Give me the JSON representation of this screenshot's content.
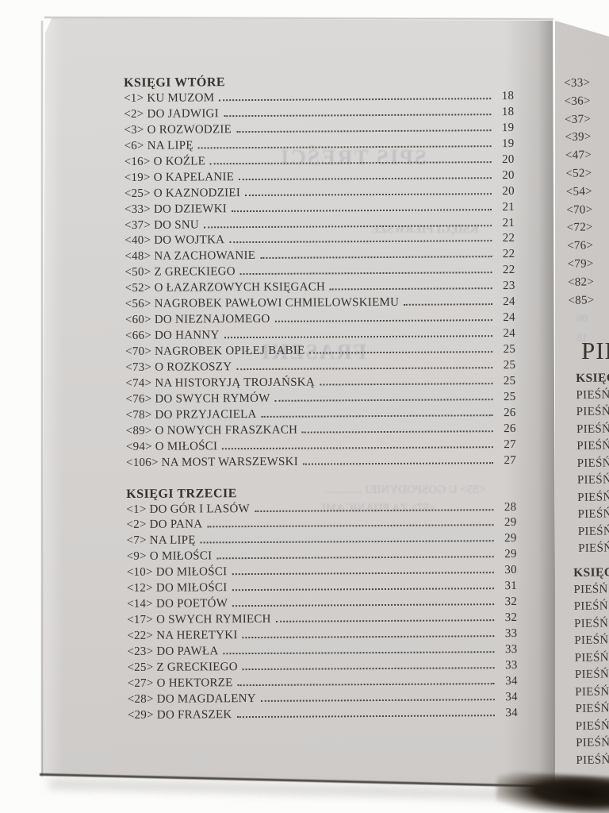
{
  "photo": {
    "background_color": "#fcfcfb",
    "left_page_color": "#d5d3d1",
    "right_page_color": "#c9c6c4",
    "ink_color": "#35312d"
  },
  "left_page": {
    "sections": [
      {
        "heading": "KSIĘGI WTÓRE",
        "entries": [
          {
            "label": "<1> KU MUZOM",
            "page": "18"
          },
          {
            "label": "<2> DO JADWIGI",
            "page": "18"
          },
          {
            "label": "<3> O ROZWODZIE",
            "page": "19"
          },
          {
            "label": "<6> NA LIPĘ",
            "page": "19"
          },
          {
            "label": "<16> O KOŹLE",
            "page": "20"
          },
          {
            "label": "<19> O KAPELANIE",
            "page": "20"
          },
          {
            "label": "<25> O KAZNODZIEI",
            "page": "20"
          },
          {
            "label": "<33> DO DZIEWKI",
            "page": "21"
          },
          {
            "label": "<37> DO SNU",
            "page": "21"
          },
          {
            "label": "<40> DO WOJTKA",
            "page": "22"
          },
          {
            "label": "<48> NA ZACHOWANIE",
            "page": "22"
          },
          {
            "label": "<50> Z GRECKIEGO",
            "page": "22"
          },
          {
            "label": "<52> O ŁAZARZOWYCH KSIĘGACH",
            "page": "23"
          },
          {
            "label": "<56> NAGROBEK PAWŁOWI CHMIELOWSKIEMU",
            "page": "24"
          },
          {
            "label": "<60> DO NIEZNAJOMEGO",
            "page": "24"
          },
          {
            "label": "<66> DO HANNY",
            "page": "24"
          },
          {
            "label": "<70> NAGROBEK OPIŁEJ BABIE",
            "page": "25"
          },
          {
            "label": "<73> O ROZKOSZY",
            "page": "25"
          },
          {
            "label": "<74> NA HISTORYJĄ TROJAŃSKĄ",
            "page": "25"
          },
          {
            "label": "<76> DO SWYCH RYMÓW",
            "page": "25"
          },
          {
            "label": "<78> DO PRZYJACIELA",
            "page": "26"
          },
          {
            "label": "<89> O NOWYCH FRASZKACH",
            "page": "26"
          },
          {
            "label": "<94> O  MIŁOŚCI",
            "page": "27"
          },
          {
            "label": "<106> NA MOST WARSZEWSKI",
            "page": "27"
          }
        ]
      },
      {
        "heading": "KSIĘGI TRZECIE",
        "entries": [
          {
            "label": "<1> DO GÓR I LASÓW",
            "page": "28"
          },
          {
            "label": "<2> DO PANA",
            "page": "29"
          },
          {
            "label": "<7> NA LIPĘ",
            "page": "29"
          },
          {
            "label": "<9> O MIŁOŚCI",
            "page": "29"
          },
          {
            "label": "<10> DO MIŁOŚCI",
            "page": "30"
          },
          {
            "label": "<12> DO MIŁOŚCI",
            "page": "31"
          },
          {
            "label": "<14> DO POETÓW",
            "page": "32"
          },
          {
            "label": "<17> O SWYCH RYMIECH",
            "page": "32"
          },
          {
            "label": "<22> NA HERETYKI",
            "page": "33"
          },
          {
            "label": "<23> DO PAWŁA",
            "page": "33"
          },
          {
            "label": "<25> Z GRECKIEGO",
            "page": "33"
          },
          {
            "label": "<27> O HEKTORZE",
            "page": "34"
          },
          {
            "label": "<28> DO MAGDALENY",
            "page": "34"
          },
          {
            "label": "<29> DO FRASZEK",
            "page": "34"
          }
        ]
      }
    ]
  },
  "right_page": {
    "clipped_entries": [
      "<33>",
      "<36>",
      "<37>",
      "<39>",
      "<47>",
      "<52>",
      "<54>",
      "<70>",
      "<72>",
      "<76>",
      "<79>",
      "<82>",
      "<85>"
    ],
    "big_heading_fragment": "PIEŚNI",
    "sections": [
      {
        "heading_fragment": "KSIĘGI",
        "row_fragments": [
          "PIEŚŃ",
          "PIEŚŃ",
          "PIEŚŃ",
          "PIEŚŃ",
          "PIEŚŃ",
          "PIEŚŃ",
          "PIEŚŃ",
          "PIEŚŃ",
          "PIEŚŃ",
          "PIEŚŃ"
        ]
      },
      {
        "heading_fragment": "KSIĘGI",
        "row_fragments": [
          "PIEŚŃ",
          "PIEŚŃ",
          "PIEŚŃ",
          "PIEŚŃ",
          "PIEŚŃ",
          "PIEŚŃ",
          "PIEŚŃ",
          "PIEŚŃ",
          "PIEŚŃ",
          "PIEŚŃ",
          "PIEŚŃ"
        ]
      }
    ]
  },
  "show_through": {
    "mirrored_texts": [
      {
        "text": "SPIS TREŚCI"
      },
      {
        "text": "FRASZKI"
      },
      {
        "text": "KSIĘGI PIERWSZE"
      },
      {
        "text": "<55> U GOSPODYNIEJ ............."
      },
      {
        "text": "<57> ZA PIJANICAMI"
      }
    ],
    "mirrored_numbers": [
      "04",
      "06",
      "18"
    ]
  }
}
